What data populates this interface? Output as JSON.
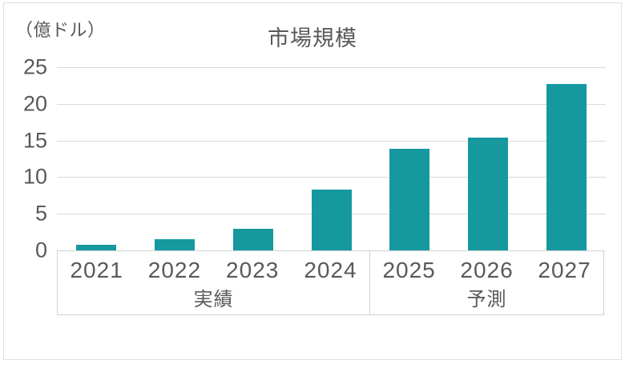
{
  "chart_data": {
    "type": "bar",
    "title": "市場規模",
    "unit_label": "（億ドル）",
    "categories": [
      "2021",
      "2022",
      "2023",
      "2024",
      "2025",
      "2026",
      "2027"
    ],
    "values": [
      0.8,
      1.5,
      3.0,
      8.3,
      13.9,
      15.4,
      22.7
    ],
    "groups": [
      {
        "label": "実績",
        "count": 4
      },
      {
        "label": "予測",
        "count": 3
      }
    ],
    "xlabel": "",
    "ylabel": "（億ドル）",
    "ylim": [
      0,
      25
    ],
    "yticks": [
      0,
      5,
      10,
      15,
      20,
      25
    ],
    "grid": "horizontal",
    "legend": "none",
    "bar_color": "#16989f",
    "grid_color": "#d9d9d9",
    "text_color": "#595959"
  }
}
